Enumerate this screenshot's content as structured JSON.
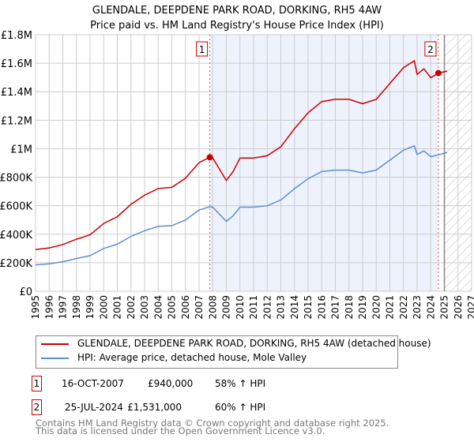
{
  "chart_data": {
    "type": "line",
    "title": "GLENDALE, DEEPDENE PARK ROAD, DORKING, RH5 4AW",
    "subtitle": "Price paid vs. HM Land Registry's House Price Index (HPI)",
    "xlim": [
      1995,
      2027
    ],
    "ylim": [
      0,
      1800000
    ],
    "y_ticks": [
      0,
      200000,
      400000,
      600000,
      800000,
      1000000,
      1200000,
      1400000,
      1600000,
      1800000
    ],
    "y_tick_labels": [
      "£0",
      "£200K",
      "£400K",
      "£600K",
      "£800K",
      "£1M",
      "£1.2M",
      "£1.4M",
      "£1.6M",
      "£1.8M"
    ],
    "x_ticks": [
      1995,
      1996,
      1997,
      1998,
      1999,
      2000,
      2001,
      2002,
      2003,
      2004,
      2005,
      2006,
      2007,
      2008,
      2009,
      2010,
      2011,
      2012,
      2013,
      2014,
      2015,
      2016,
      2017,
      2018,
      2019,
      2020,
      2021,
      2022,
      2023,
      2024,
      2025,
      2026,
      2027
    ],
    "grid": true,
    "shaded_range": [
      2007.79,
      2024.56
    ],
    "forecast_hatch_from": 2025.0,
    "series": [
      {
        "name": "GLENDALE, DEEPDENE PARK ROAD, DORKING, RH5 4AW (detached house)",
        "color": "#cc0000",
        "x": [
          1995,
          1996,
          1997,
          1998,
          1999,
          2000,
          2001,
          2002,
          2003,
          2004,
          2005,
          2006,
          2007,
          2007.79,
          2008,
          2008.5,
          2009,
          2009.5,
          2010,
          2011,
          2012,
          2013,
          2014,
          2015,
          2016,
          2017,
          2018,
          2019,
          2020,
          2021,
          2022,
          2022.8,
          2023,
          2023.5,
          2024,
          2024.56,
          2025.2
        ],
        "y": [
          293000,
          304000,
          328000,
          365000,
          396000,
          476000,
          523000,
          610000,
          674000,
          721000,
          729000,
          793000,
          903000,
          940000,
          935000,
          856000,
          777000,
          840000,
          935000,
          935000,
          951000,
          1014000,
          1141000,
          1252000,
          1331000,
          1347000,
          1347000,
          1316000,
          1347000,
          1458000,
          1569000,
          1617000,
          1522000,
          1561000,
          1498000,
          1531000,
          1545000
        ]
      },
      {
        "name": "HPI: Average price, detached house, Mole Valley",
        "color": "#5b8fd4",
        "x": [
          1995,
          1996,
          1997,
          1998,
          1999,
          2000,
          2001,
          2002,
          2003,
          2004,
          2005,
          2006,
          2007,
          2007.79,
          2008,
          2008.5,
          2009,
          2009.5,
          2010,
          2011,
          2012,
          2013,
          2014,
          2015,
          2016,
          2017,
          2018,
          2019,
          2020,
          2021,
          2022,
          2022.8,
          2023,
          2023.5,
          2024,
          2024.56,
          2025.2
        ],
        "y": [
          185000,
          192000,
          207000,
          230000,
          250000,
          300000,
          330000,
          385000,
          425000,
          455000,
          460000,
          500000,
          570000,
          593000,
          590000,
          540000,
          490000,
          530000,
          590000,
          590000,
          600000,
          640000,
          720000,
          790000,
          840000,
          850000,
          850000,
          830000,
          850000,
          920000,
          990000,
          1020000,
          960000,
          985000,
          945000,
          957000,
          975000
        ]
      }
    ],
    "annotations": [
      {
        "label": "1",
        "x": 2007.79,
        "y": 940000
      },
      {
        "label": "2",
        "x": 2024.56,
        "y": 1531000
      }
    ]
  },
  "transactions": [
    {
      "num": "1",
      "date": "16-OCT-2007",
      "price": "£940,000",
      "hpi": "58% ↑ HPI"
    },
    {
      "num": "2",
      "date": "25-JUL-2024",
      "price": "£1,531,000",
      "hpi": "60% ↑ HPI"
    }
  ],
  "footer": [
    "Contains HM Land Registry data © Crown copyright and database right 2025.",
    "This data is licensed under the Open Government Licence v3.0."
  ]
}
